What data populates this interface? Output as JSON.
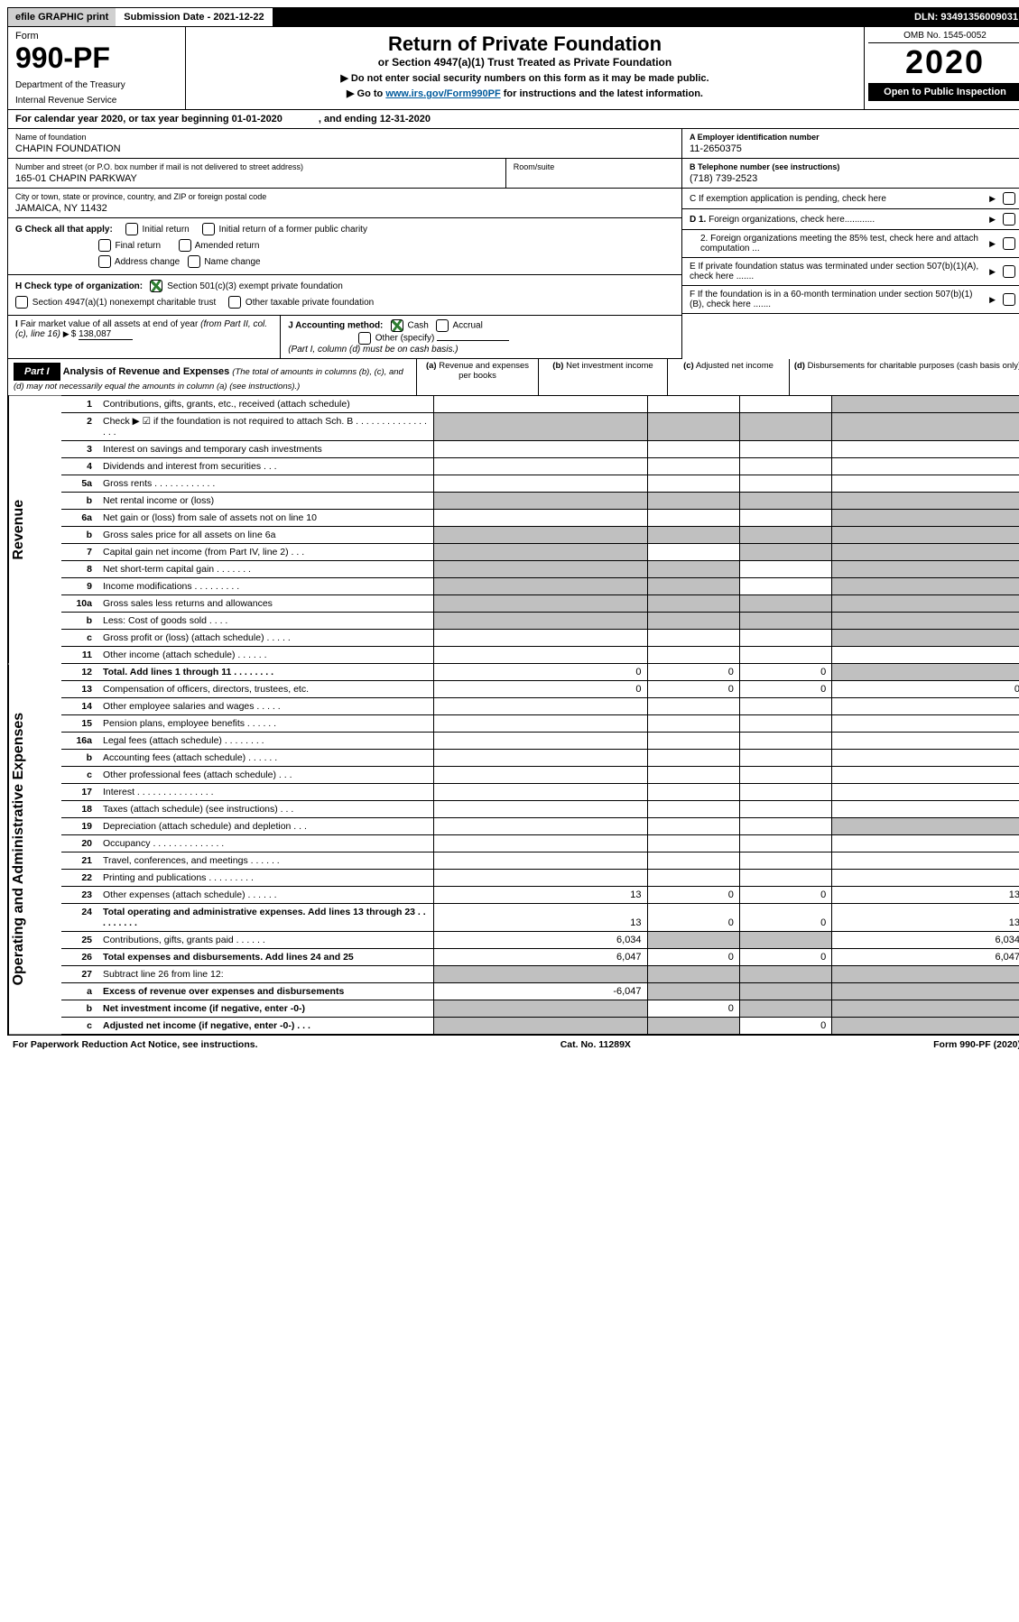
{
  "topbar": {
    "efile": "efile GRAPHIC print",
    "submission": "Submission Date - 2021-12-22",
    "dln": "DLN: 93491356009031"
  },
  "header": {
    "form_label": "Form",
    "form_no": "990-PF",
    "dept": "Department of the Treasury",
    "irs": "Internal Revenue Service",
    "title": "Return of Private Foundation",
    "subtitle": "or Section 4947(a)(1) Trust Treated as Private Foundation",
    "note1": "▶ Do not enter social security numbers on this form as it may be made public.",
    "note2_pre": "▶ Go to ",
    "note2_link": "www.irs.gov/Form990PF",
    "note2_post": " for instructions and the latest information.",
    "omb": "OMB No. 1545-0052",
    "year": "2020",
    "open": "Open to Public Inspection"
  },
  "calendar": {
    "text": "For calendar year 2020, or tax year beginning 01-01-2020",
    "ending": ", and ending 12-31-2020"
  },
  "info": {
    "name_lbl": "Name of foundation",
    "name": "CHAPIN FOUNDATION",
    "addr_lbl": "Number and street (or P.O. box number if mail is not delivered to street address)",
    "addr": "165-01 CHAPIN PARKWAY",
    "room_lbl": "Room/suite",
    "city_lbl": "City or town, state or province, country, and ZIP or foreign postal code",
    "city": "JAMAICA, NY  11432",
    "ein_lbl": "A Employer identification number",
    "ein": "11-2650375",
    "tel_lbl": "B Telephone number (see instructions)",
    "tel": "(718) 739-2523",
    "c_lbl": "C If exemption application is pending, check here",
    "g_lbl": "G Check all that apply:",
    "g1": "Initial return",
    "g2": "Initial return of a former public charity",
    "g3": "Final return",
    "g4": "Amended return",
    "g5": "Address change",
    "g6": "Name change",
    "h_lbl": "H Check type of organization:",
    "h1": "Section 501(c)(3) exempt private foundation",
    "h2": "Section 4947(a)(1) nonexempt charitable trust",
    "h3": "Other taxable private foundation",
    "i_lbl": "I Fair market value of all assets at end of year (from Part II, col. (c), line 16)",
    "i_val": "138,087",
    "j_lbl": "J Accounting method:",
    "j_cash": "Cash",
    "j_accrual": "Accrual",
    "j_other": "Other (specify)",
    "j_note": "(Part I, column (d) must be on cash basis.)",
    "d1": "D 1. Foreign organizations, check here............",
    "d2": "2. Foreign organizations meeting the 85% test, check here and attach computation ...",
    "e": "E  If private foundation status was terminated under section 507(b)(1)(A), check here .......",
    "f": "F  If the foundation is in a 60-month termination under section 507(b)(1)(B), check here ......."
  },
  "part1": {
    "label": "Part I",
    "title": "Analysis of Revenue and Expenses",
    "title_note": " (The total of amounts in columns (b), (c), and (d) may not necessarily equal the amounts in column (a) (see instructions).)",
    "col_a": "Revenue and expenses per books",
    "col_b": "Net investment income",
    "col_c": "Adjusted net income",
    "col_d": "Disbursements for charitable purposes (cash basis only)"
  },
  "sidebar": {
    "revenue": "Revenue",
    "expenses": "Operating and Administrative Expenses"
  },
  "rows": {
    "r1": {
      "n": "1",
      "d": "Contributions, gifts, grants, etc., received (attach schedule)"
    },
    "r2": {
      "n": "2",
      "d": "Check ▶ ☑ if the foundation is not required to attach Sch. B  . . . . . . . . . . . . . . . . ."
    },
    "r3": {
      "n": "3",
      "d": "Interest on savings and temporary cash investments"
    },
    "r4": {
      "n": "4",
      "d": "Dividends and interest from securities  .  .  ."
    },
    "r5a": {
      "n": "5a",
      "d": "Gross rents  .  .  .  .  .  .  .  .  .  .  .  ."
    },
    "r5b": {
      "n": "b",
      "d": "Net rental income or (loss)"
    },
    "r6a": {
      "n": "6a",
      "d": "Net gain or (loss) from sale of assets not on line 10"
    },
    "r6b": {
      "n": "b",
      "d": "Gross sales price for all assets on line 6a"
    },
    "r7": {
      "n": "7",
      "d": "Capital gain net income (from Part IV, line 2)  .  .  ."
    },
    "r8": {
      "n": "8",
      "d": "Net short-term capital gain  .  .  .  .  .  .  ."
    },
    "r9": {
      "n": "9",
      "d": "Income modifications  .  .  .  .  .  .  .  .  ."
    },
    "r10a": {
      "n": "10a",
      "d": "Gross sales less returns and allowances"
    },
    "r10b": {
      "n": "b",
      "d": "Less: Cost of goods sold  .  .  .  ."
    },
    "r10c": {
      "n": "c",
      "d": "Gross profit or (loss) (attach schedule)  .  .  .  .  ."
    },
    "r11": {
      "n": "11",
      "d": "Other income (attach schedule)  .  .  .  .  .  ."
    },
    "r12": {
      "n": "12",
      "d": "Total. Add lines 1 through 11  .  .  .  .  .  .  .  .",
      "a": "0",
      "b": "0",
      "c": "0"
    },
    "r13": {
      "n": "13",
      "d": "Compensation of officers, directors, trustees, etc.",
      "a": "0",
      "b": "0",
      "c": "0",
      "dd": "0"
    },
    "r14": {
      "n": "14",
      "d": "Other employee salaries and wages  .  .  .  .  ."
    },
    "r15": {
      "n": "15",
      "d": "Pension plans, employee benefits  .  .  .  .  .  ."
    },
    "r16a": {
      "n": "16a",
      "d": "Legal fees (attach schedule)  .  .  .  .  .  .  .  ."
    },
    "r16b": {
      "n": "b",
      "d": "Accounting fees (attach schedule)  .  .  .  .  .  ."
    },
    "r16c": {
      "n": "c",
      "d": "Other professional fees (attach schedule)  .  .  ."
    },
    "r17": {
      "n": "17",
      "d": "Interest  .  .  .  .  .  .  .  .  .  .  .  .  .  .  ."
    },
    "r18": {
      "n": "18",
      "d": "Taxes (attach schedule) (see instructions)  .  .  ."
    },
    "r19": {
      "n": "19",
      "d": "Depreciation (attach schedule) and depletion  .  .  ."
    },
    "r20": {
      "n": "20",
      "d": "Occupancy  .  .  .  .  .  .  .  .  .  .  .  .  .  ."
    },
    "r21": {
      "n": "21",
      "d": "Travel, conferences, and meetings  .  .  .  .  .  ."
    },
    "r22": {
      "n": "22",
      "d": "Printing and publications  .  .  .  .  .  .  .  .  ."
    },
    "r23": {
      "n": "23",
      "d": "Other expenses (attach schedule)  .  .  .  .  .  .",
      "a": "13",
      "b": "0",
      "c": "0",
      "dd": "13"
    },
    "r24": {
      "n": "24",
      "d": "Total operating and administrative expenses. Add lines 13 through 23  .  .  .  .  .  .  .  .  .",
      "a": "13",
      "b": "0",
      "c": "0",
      "dd": "13"
    },
    "r25": {
      "n": "25",
      "d": "Contributions, gifts, grants paid  .  .  .  .  .  .",
      "a": "6,034",
      "dd": "6,034"
    },
    "r26": {
      "n": "26",
      "d": "Total expenses and disbursements. Add lines 24 and 25",
      "a": "6,047",
      "b": "0",
      "c": "0",
      "dd": "6,047"
    },
    "r27": {
      "n": "27",
      "d": "Subtract line 26 from line 12:"
    },
    "r27a": {
      "n": "a",
      "d": "Excess of revenue over expenses and disbursements",
      "a": "-6,047"
    },
    "r27b": {
      "n": "b",
      "d": "Net investment income (if negative, enter -0-)",
      "b": "0"
    },
    "r27c": {
      "n": "c",
      "d": "Adjusted net income (if negative, enter -0-)  .  .  .",
      "c": "0"
    }
  },
  "footer": {
    "left": "For Paperwork Reduction Act Notice, see instructions.",
    "mid": "Cat. No. 11289X",
    "right": "Form 990-PF (2020)"
  },
  "colors": {
    "grey": "#c0c0c0",
    "link": "#005a9c"
  }
}
